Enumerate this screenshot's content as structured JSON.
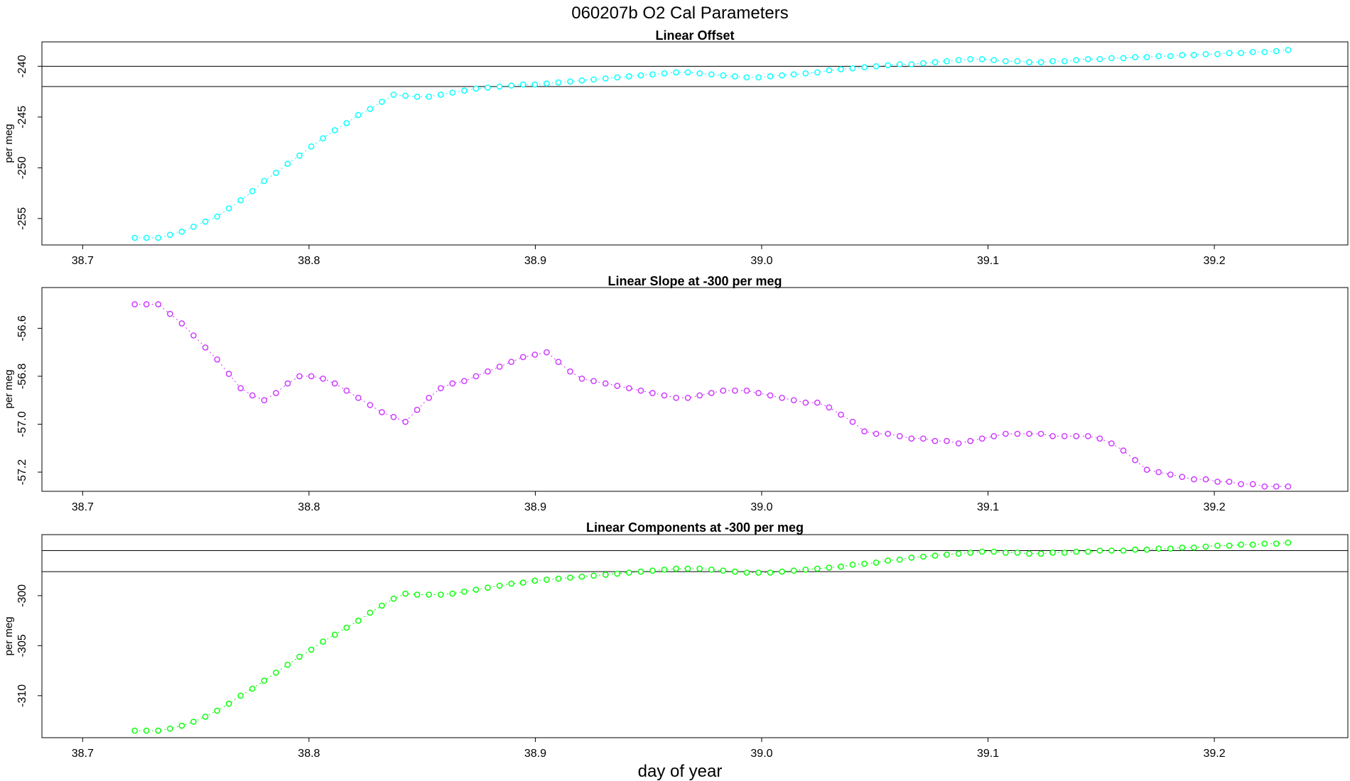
{
  "figure": {
    "title": "060207b   O2 Cal Parameters",
    "xlabel": "day of year",
    "colors": {
      "panel1": "#00ffff",
      "panel2": "#cc33ff",
      "panel3": "#00ff00",
      "axes": "#000000",
      "reference_lines": "#000000"
    }
  },
  "chart_data": [
    {
      "type": "scatter",
      "title": "Linear Offset",
      "xlabel": "",
      "ylabel": "per meg",
      "xlim": [
        38.682,
        39.259
      ],
      "ylim": [
        -257.6,
        -237.6
      ],
      "xticks": [
        "38.7",
        "38.8",
        "38.9",
        "39.0",
        "39.1",
        "39.2"
      ],
      "yticks": [
        "-240",
        "-245",
        "-250",
        "-255"
      ],
      "grid": false,
      "hlines": [
        -240.0,
        -242.0
      ],
      "series": [
        {
          "color": "#00ffff",
          "x": [
            38.723,
            38.7282,
            38.7334,
            38.7386,
            38.7438,
            38.749,
            38.7542,
            38.7594,
            38.7646,
            38.7698,
            38.775,
            38.7802,
            38.7854,
            38.7906,
            38.7958,
            38.801,
            38.8062,
            38.8114,
            38.8166,
            38.8218,
            38.827,
            38.8322,
            38.8374,
            38.8426,
            38.8478,
            38.853,
            38.8582,
            38.8634,
            38.8686,
            38.8738,
            38.879,
            38.8842,
            38.8894,
            38.8946,
            38.8998,
            38.905,
            38.9102,
            38.9154,
            38.9206,
            38.9258,
            38.931,
            38.9362,
            38.9414,
            38.9466,
            38.9518,
            38.957,
            38.9622,
            38.9674,
            38.9726,
            38.9778,
            38.983,
            38.9882,
            38.9934,
            38.9986,
            39.0038,
            39.009,
            39.0142,
            39.0194,
            39.0246,
            39.0298,
            39.035,
            39.0402,
            39.0454,
            39.0506,
            39.0558,
            39.061,
            39.0662,
            39.0714,
            39.0766,
            39.0818,
            39.087,
            39.0922,
            39.0974,
            39.1026,
            39.1078,
            39.113,
            39.1182,
            39.1234,
            39.1286,
            39.1338,
            39.139,
            39.1442,
            39.1494,
            39.1546,
            39.1598,
            39.165,
            39.1702,
            39.1754,
            39.1806,
            39.1858,
            39.191,
            39.1962,
            39.2014,
            39.2066,
            39.2118,
            39.217,
            39.2222,
            39.2274,
            39.2326
          ],
          "y": [
            -256.9,
            -256.9,
            -256.9,
            -256.6,
            -256.3,
            -255.8,
            -255.3,
            -254.8,
            -254.0,
            -253.2,
            -252.3,
            -251.3,
            -250.5,
            -249.6,
            -248.8,
            -247.9,
            -247.1,
            -246.3,
            -245.6,
            -244.8,
            -244.2,
            -243.5,
            -242.8,
            -242.9,
            -243.0,
            -243.0,
            -242.8,
            -242.6,
            -242.4,
            -242.2,
            -242.1,
            -242.0,
            -241.9,
            -241.8,
            -241.8,
            -241.7,
            -241.6,
            -241.5,
            -241.4,
            -241.3,
            -241.2,
            -241.1,
            -241.0,
            -240.9,
            -240.8,
            -240.7,
            -240.6,
            -240.6,
            -240.7,
            -240.8,
            -240.9,
            -241.0,
            -241.1,
            -241.1,
            -241.0,
            -240.9,
            -240.8,
            -240.7,
            -240.6,
            -240.4,
            -240.3,
            -240.2,
            -240.1,
            -240.0,
            -239.9,
            -239.8,
            -239.8,
            -239.7,
            -239.6,
            -239.5,
            -239.4,
            -239.3,
            -239.3,
            -239.4,
            -239.5,
            -239.5,
            -239.6,
            -239.6,
            -239.5,
            -239.5,
            -239.4,
            -239.3,
            -239.3,
            -239.2,
            -239.2,
            -239.1,
            -239.1,
            -239.0,
            -239.0,
            -238.9,
            -238.9,
            -238.8,
            -238.8,
            -238.7,
            -238.7,
            -238.6,
            -238.6,
            -238.5,
            -238.4
          ]
        }
      ]
    },
    {
      "type": "scatter",
      "title": "Linear Slope at -300 per meg",
      "xlabel": "",
      "ylabel": "per meg",
      "xlim": [
        38.682,
        39.259
      ],
      "ylim": [
        -57.28,
        -56.43
      ],
      "xticks": [
        "38.7",
        "38.8",
        "38.9",
        "39.0",
        "39.1",
        "39.2"
      ],
      "yticks": [
        "-56.6",
        "-56.8",
        "-57.0",
        "-57.2"
      ],
      "grid": false,
      "hlines": [],
      "series": [
        {
          "color": "#cc33ff",
          "x": [
            38.723,
            38.7282,
            38.7334,
            38.7386,
            38.7438,
            38.749,
            38.7542,
            38.7594,
            38.7646,
            38.7698,
            38.775,
            38.7802,
            38.7854,
            38.7906,
            38.7958,
            38.801,
            38.8062,
            38.8114,
            38.8166,
            38.8218,
            38.827,
            38.8322,
            38.8374,
            38.8426,
            38.8478,
            38.853,
            38.8582,
            38.8634,
            38.8686,
            38.8738,
            38.879,
            38.8842,
            38.8894,
            38.8946,
            38.8998,
            38.905,
            38.9102,
            38.9154,
            38.9206,
            38.9258,
            38.931,
            38.9362,
            38.9414,
            38.9466,
            38.9518,
            38.957,
            38.9622,
            38.9674,
            38.9726,
            38.9778,
            38.983,
            38.9882,
            38.9934,
            38.9986,
            39.0038,
            39.009,
            39.0142,
            39.0194,
            39.0246,
            39.0298,
            39.035,
            39.0402,
            39.0454,
            39.0506,
            39.0558,
            39.061,
            39.0662,
            39.0714,
            39.0766,
            39.0818,
            39.087,
            39.0922,
            39.0974,
            39.1026,
            39.1078,
            39.113,
            39.1182,
            39.1234,
            39.1286,
            39.1338,
            39.139,
            39.1442,
            39.1494,
            39.1546,
            39.1598,
            39.165,
            39.1702,
            39.1754,
            39.1806,
            39.1858,
            39.191,
            39.1962,
            39.2014,
            39.2066,
            39.2118,
            39.217,
            39.2222,
            39.2274,
            39.2326
          ],
          "y": [
            -56.5,
            -56.5,
            -56.5,
            -56.54,
            -56.58,
            -56.63,
            -56.68,
            -56.73,
            -56.79,
            -56.85,
            -56.88,
            -56.9,
            -56.87,
            -56.83,
            -56.8,
            -56.8,
            -56.81,
            -56.83,
            -56.86,
            -56.89,
            -56.92,
            -56.95,
            -56.97,
            -56.99,
            -56.94,
            -56.89,
            -56.85,
            -56.83,
            -56.82,
            -56.8,
            -56.78,
            -56.76,
            -56.74,
            -56.72,
            -56.71,
            -56.7,
            -56.74,
            -56.78,
            -56.81,
            -56.82,
            -56.83,
            -56.84,
            -56.85,
            -56.86,
            -56.87,
            -56.88,
            -56.89,
            -56.89,
            -56.88,
            -56.87,
            -56.86,
            -56.86,
            -56.86,
            -56.87,
            -56.88,
            -56.89,
            -56.9,
            -56.91,
            -56.91,
            -56.93,
            -56.96,
            -56.99,
            -57.03,
            -57.04,
            -57.04,
            -57.05,
            -57.06,
            -57.06,
            -57.07,
            -57.07,
            -57.08,
            -57.07,
            -57.06,
            -57.05,
            -57.04,
            -57.04,
            -57.04,
            -57.04,
            -57.05,
            -57.05,
            -57.05,
            -57.05,
            -57.06,
            -57.08,
            -57.11,
            -57.15,
            -57.19,
            -57.2,
            -57.21,
            -57.22,
            -57.23,
            -57.23,
            -57.24,
            -57.24,
            -57.25,
            -57.25,
            -57.26,
            -57.26,
            -57.26
          ]
        }
      ]
    },
    {
      "type": "scatter",
      "title": "Linear Components at -300 per meg",
      "xlabel": "day of year",
      "ylabel": "per meg",
      "xlim": [
        38.682,
        39.259
      ],
      "ylim": [
        -314.2,
        -293.9
      ],
      "xticks": [
        "38.7",
        "38.8",
        "38.9",
        "39.0",
        "39.1",
        "39.2"
      ],
      "yticks": [
        "-300",
        "-305",
        "-310"
      ],
      "grid": false,
      "hlines": [
        -295.5,
        -297.6
      ],
      "series": [
        {
          "color": "#00ff00",
          "x": [
            38.723,
            38.7282,
            38.7334,
            38.7386,
            38.7438,
            38.749,
            38.7542,
            38.7594,
            38.7646,
            38.7698,
            38.775,
            38.7802,
            38.7854,
            38.7906,
            38.7958,
            38.801,
            38.8062,
            38.8114,
            38.8166,
            38.8218,
            38.827,
            38.8322,
            38.8374,
            38.8426,
            38.8478,
            38.853,
            38.8582,
            38.8634,
            38.8686,
            38.8738,
            38.879,
            38.8842,
            38.8894,
            38.8946,
            38.8998,
            38.905,
            38.9102,
            38.9154,
            38.9206,
            38.9258,
            38.931,
            38.9362,
            38.9414,
            38.9466,
            38.9518,
            38.957,
            38.9622,
            38.9674,
            38.9726,
            38.9778,
            38.983,
            38.9882,
            38.9934,
            38.9986,
            39.0038,
            39.009,
            39.0142,
            39.0194,
            39.0246,
            39.0298,
            39.035,
            39.0402,
            39.0454,
            39.0506,
            39.0558,
            39.061,
            39.0662,
            39.0714,
            39.0766,
            39.0818,
            39.087,
            39.0922,
            39.0974,
            39.1026,
            39.1078,
            39.113,
            39.1182,
            39.1234,
            39.1286,
            39.1338,
            39.139,
            39.1442,
            39.1494,
            39.1546,
            39.1598,
            39.165,
            39.1702,
            39.1754,
            39.1806,
            39.1858,
            39.191,
            39.1962,
            39.2014,
            39.2066,
            39.2118,
            39.217,
            39.2222,
            39.2274,
            39.2326
          ],
          "y": [
            -313.5,
            -313.5,
            -313.5,
            -313.3,
            -313.0,
            -312.6,
            -312.1,
            -311.5,
            -310.8,
            -310.0,
            -309.3,
            -308.5,
            -307.7,
            -306.9,
            -306.1,
            -305.4,
            -304.6,
            -303.9,
            -303.2,
            -302.5,
            -301.7,
            -301.0,
            -300.3,
            -299.8,
            -299.9,
            -299.9,
            -299.9,
            -299.8,
            -299.6,
            -299.4,
            -299.2,
            -299.0,
            -298.8,
            -298.7,
            -298.5,
            -298.4,
            -298.3,
            -298.2,
            -298.1,
            -298.0,
            -297.9,
            -297.8,
            -297.7,
            -297.6,
            -297.5,
            -297.4,
            -297.3,
            -297.3,
            -297.3,
            -297.4,
            -297.5,
            -297.6,
            -297.7,
            -297.7,
            -297.7,
            -297.6,
            -297.5,
            -297.4,
            -297.3,
            -297.2,
            -297.1,
            -296.9,
            -296.8,
            -296.7,
            -296.5,
            -296.4,
            -296.2,
            -296.1,
            -296.0,
            -295.9,
            -295.8,
            -295.7,
            -295.6,
            -295.6,
            -295.7,
            -295.7,
            -295.8,
            -295.8,
            -295.7,
            -295.7,
            -295.6,
            -295.6,
            -295.5,
            -295.5,
            -295.5,
            -295.4,
            -295.4,
            -295.3,
            -295.3,
            -295.2,
            -295.2,
            -295.1,
            -295.0,
            -295.0,
            -294.9,
            -294.9,
            -294.8,
            -294.8,
            -294.7
          ]
        }
      ]
    }
  ]
}
